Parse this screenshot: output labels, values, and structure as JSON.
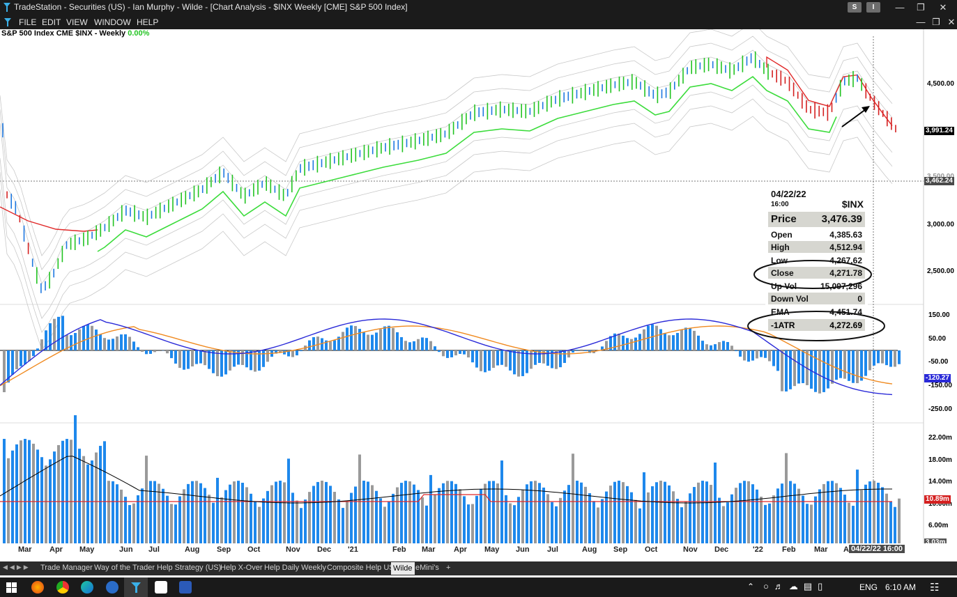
{
  "window": {
    "title": "TradeStation - Securities (US) - Ian Murphy - Wilde - [Chart Analysis - $INX Weekly [CME] S&P 500 Index]",
    "sys_buttons": [
      "S",
      "I"
    ]
  },
  "menu": [
    "FILE",
    "EDIT",
    "VIEW",
    "WINDOW",
    "HELP"
  ],
  "chart_header": {
    "name": "S&P 500 Index",
    "exchange": "CME",
    "symbol": "$INX - Weekly",
    "change": "0.00%"
  },
  "price_axis": {
    "ticks": [
      "4,500.00",
      "3,000.00",
      "2,500.00"
    ],
    "partial_tick": "3,500.00",
    "last_price": "3,991.24",
    "crosshair_price": "3,462.24"
  },
  "macd_axis": {
    "ticks": [
      "150.00",
      "50.00",
      "-50.00",
      "-150.00",
      "-250.00"
    ],
    "last": "-120.27"
  },
  "volume_axis": {
    "ticks": [
      "22.00m",
      "18.00m",
      "14.00m",
      "10.00m",
      "6.00m"
    ],
    "last": "10.89m",
    "bottom": "3.03m"
  },
  "x_axis": {
    "labels": [
      "Mar",
      "Apr",
      "May",
      "Jun",
      "Jul",
      "Aug",
      "Sep",
      "Oct",
      "Nov",
      "Dec",
      "'21",
      "Feb",
      "Mar",
      "Apr",
      "May",
      "Jun",
      "Jul",
      "Aug",
      "Sep",
      "Oct",
      "Nov",
      "Dec",
      "'22",
      "Feb",
      "Mar",
      "A"
    ],
    "cursor_label": "04/22/22 16:00"
  },
  "data_window": {
    "date": "04/22/22",
    "time": "16:00",
    "symbol": "$INX",
    "price_label": "Price",
    "price": "3,476.39",
    "rows": [
      {
        "label": "Open",
        "value": "4,385.63"
      },
      {
        "label": "High",
        "value": "4,512.94"
      },
      {
        "label": "Low",
        "value": "4,267.62"
      },
      {
        "label": "Close",
        "value": "4,271.78"
      },
      {
        "label": "Up Vol",
        "value": "15,097,296"
      },
      {
        "label": "Down Vol",
        "value": "0"
      },
      {
        "label": "EMA",
        "value": "4,451.74"
      },
      {
        "label": "-1ATR",
        "value": "4,272.69"
      }
    ]
  },
  "tabs": [
    "Trade Manager",
    "Way of the Trader",
    "Help Strategy (US)",
    "Help X-Over",
    "Help Daily Weekly",
    "Composite Help US",
    "Wilde",
    "eMini's",
    "+"
  ],
  "taskbar": {
    "language": "ENG",
    "time": "6:10 AM"
  },
  "colors": {
    "up_bar": "#22c322",
    "down_bar": "#d42020",
    "blue_bar": "#1e78e0",
    "ema_fast": "#3cdc3c",
    "ema_slow": "#e02828",
    "macd": "#2a2ad8",
    "signal": "#f08a20",
    "hist_up": "#1e88ec",
    "hist_down": "#9a9a9a"
  }
}
